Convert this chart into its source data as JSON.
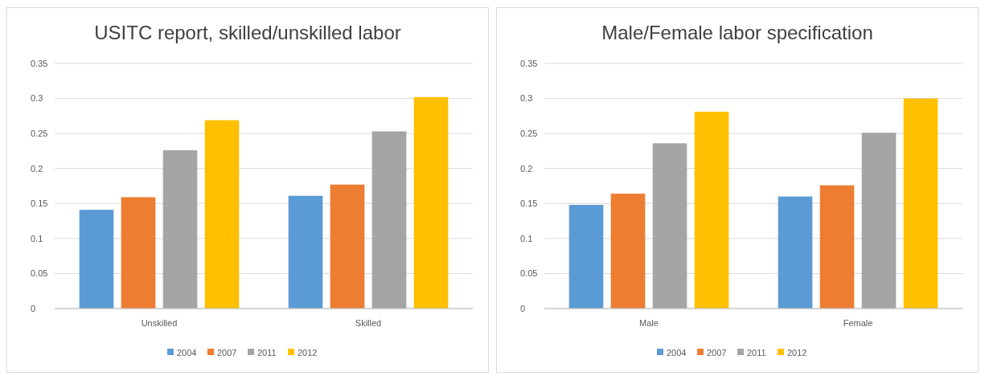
{
  "chart_data": [
    {
      "type": "bar",
      "title": "USITC report, skilled/unskilled labor",
      "categories": [
        "Unskilled",
        "Skilled"
      ],
      "series": [
        {
          "name": "2004",
          "color": "#5b9bd5",
          "values": [
            0.141,
            0.161
          ]
        },
        {
          "name": "2007",
          "color": "#ed7d31",
          "values": [
            0.159,
            0.177
          ]
        },
        {
          "name": "2011",
          "color": "#a5a5a5",
          "values": [
            0.226,
            0.253
          ]
        },
        {
          "name": "2012",
          "color": "#ffc000",
          "values": [
            0.269,
            0.302
          ]
        }
      ],
      "ylim": [
        0,
        0.35
      ],
      "yticks": [
        0,
        0.05,
        0.1,
        0.15,
        0.2,
        0.25,
        0.3,
        0.35
      ],
      "grid": "y",
      "legend": "bottom"
    },
    {
      "type": "bar",
      "title": "Male/Female labor specification",
      "categories": [
        "Male",
        "Female"
      ],
      "series": [
        {
          "name": "2004",
          "color": "#5b9bd5",
          "values": [
            0.148,
            0.16
          ]
        },
        {
          "name": "2007",
          "color": "#ed7d31",
          "values": [
            0.164,
            0.176
          ]
        },
        {
          "name": "2011",
          "color": "#a5a5a5",
          "values": [
            0.236,
            0.251
          ]
        },
        {
          "name": "2012",
          "color": "#ffc000",
          "values": [
            0.281,
            0.3
          ]
        }
      ],
      "ylim": [
        0,
        0.35
      ],
      "yticks": [
        0,
        0.05,
        0.1,
        0.15,
        0.2,
        0.25,
        0.3,
        0.35
      ],
      "grid": "y",
      "legend": "bottom"
    }
  ]
}
